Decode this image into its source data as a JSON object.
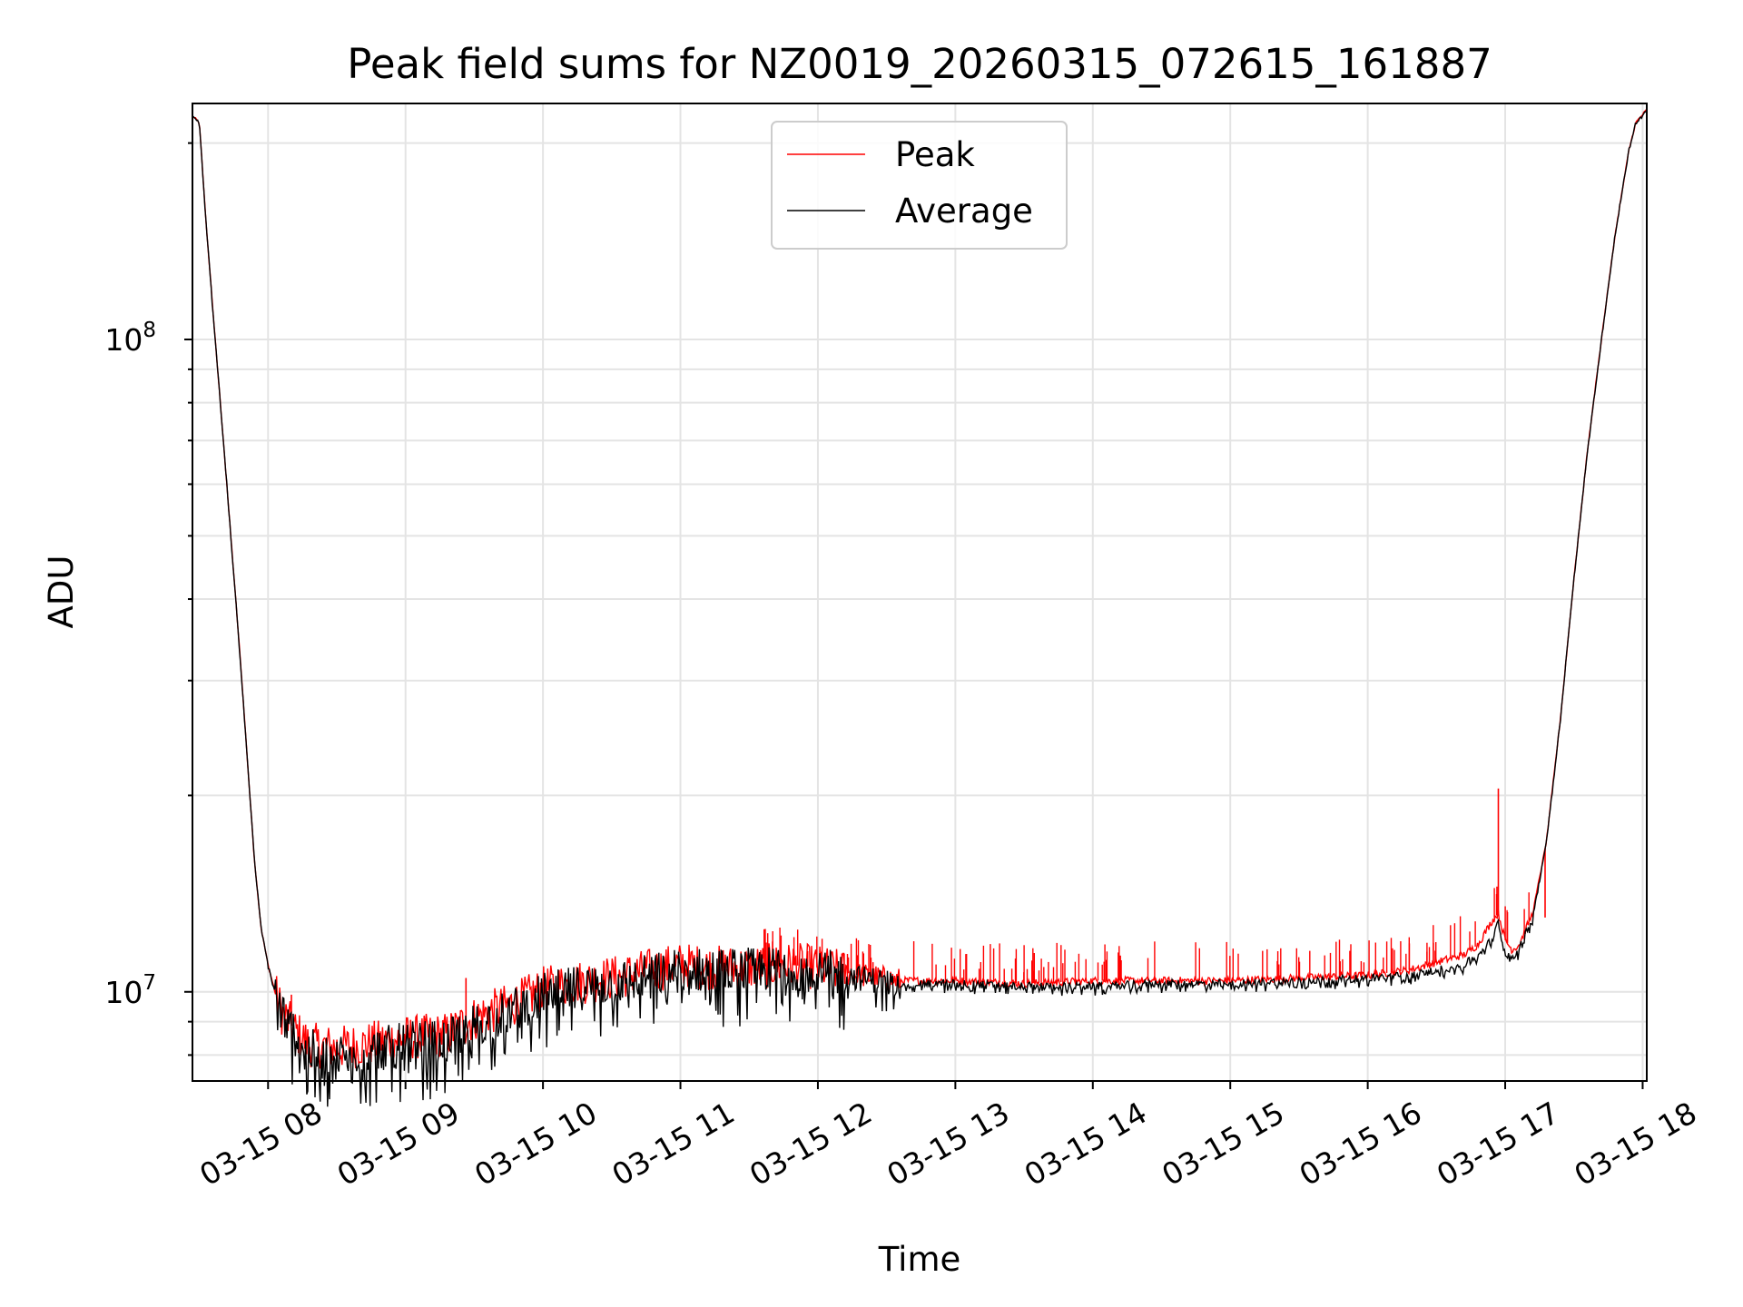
{
  "chart_data": {
    "type": "line",
    "title": "Peak field sums for NZ0019_20260315_072615_161887",
    "xlabel": "Time",
    "ylabel": "ADU",
    "yscale": "log",
    "ylim": [
      7300000,
      230000000
    ],
    "xlim_hours": [
      7.45,
      18.03
    ],
    "grid": true,
    "legend_position": "top-center",
    "x_ticks": [
      {
        "hour": 8,
        "label": "03-15 08"
      },
      {
        "hour": 9,
        "label": "03-15 09"
      },
      {
        "hour": 10,
        "label": "03-15 10"
      },
      {
        "hour": 11,
        "label": "03-15 11"
      },
      {
        "hour": 12,
        "label": "03-15 12"
      },
      {
        "hour": 13,
        "label": "03-15 13"
      },
      {
        "hour": 14,
        "label": "03-15 14"
      },
      {
        "hour": 15,
        "label": "03-15 15"
      },
      {
        "hour": 16,
        "label": "03-15 16"
      },
      {
        "hour": 17,
        "label": "03-15 17"
      },
      {
        "hour": 18,
        "label": "03-15 18"
      }
    ],
    "y_ticks": [
      {
        "value": 10000000,
        "base": "10",
        "exp": "7"
      },
      {
        "value": 100000000,
        "base": "10",
        "exp": "8"
      }
    ],
    "series": [
      {
        "name": "Peak",
        "color": "#ff0000",
        "x_hours": [
          7.45,
          7.5,
          7.55,
          7.6,
          7.7,
          7.8,
          7.9,
          7.95,
          8.0,
          8.05,
          8.1,
          8.2,
          8.3,
          8.5,
          8.7,
          9.0,
          9.3,
          9.45,
          9.55,
          9.8,
          10.0,
          10.2,
          10.5,
          10.8,
          11.0,
          11.2,
          11.5,
          11.8,
          12.0,
          12.3,
          12.6,
          13.0,
          13.5,
          14.0,
          14.5,
          15.0,
          15.5,
          16.0,
          16.3,
          16.5,
          16.7,
          16.8,
          16.9,
          16.95,
          17.0,
          17.05,
          17.1,
          17.2,
          17.3,
          17.4,
          17.5,
          17.6,
          17.7,
          17.8,
          17.9,
          17.95,
          18.03
        ],
        "values": [
          220000000,
          215000000,
          150000000,
          110000000,
          60000000,
          32000000,
          16000000,
          12500000,
          11000000,
          10000000,
          9300000,
          8700000,
          8300000,
          8200000,
          8300000,
          8500000,
          8600000,
          9000000,
          9200000,
          9600000,
          10100000,
          10300000,
          10500000,
          10800000,
          11000000,
          10900000,
          10900000,
          11000000,
          10900000,
          10600000,
          10400000,
          10400000,
          10300000,
          10400000,
          10400000,
          10400000,
          10500000,
          10600000,
          10800000,
          11100000,
          11400000,
          11800000,
          12800000,
          13200000,
          12000000,
          11600000,
          11800000,
          13200000,
          17000000,
          26000000,
          43000000,
          68000000,
          100000000,
          145000000,
          195000000,
          215000000,
          225000000
        ]
      },
      {
        "name": "Average",
        "color": "#000000",
        "x_hours": [
          7.45,
          7.5,
          7.55,
          7.6,
          7.7,
          7.8,
          7.9,
          7.95,
          8.0,
          8.05,
          8.1,
          8.2,
          8.3,
          8.5,
          8.7,
          9.0,
          9.3,
          9.45,
          9.55,
          9.8,
          10.0,
          10.2,
          10.5,
          10.8,
          11.0,
          11.2,
          11.5,
          11.8,
          12.0,
          12.3,
          12.6,
          13.0,
          13.5,
          14.0,
          14.5,
          15.0,
          15.5,
          16.0,
          16.3,
          16.5,
          16.7,
          16.8,
          16.9,
          16.95,
          17.0,
          17.05,
          17.1,
          17.2,
          17.3,
          17.4,
          17.5,
          17.6,
          17.7,
          17.8,
          17.9,
          17.95,
          18.03
        ],
        "values": [
          220000000,
          215000000,
          150000000,
          110000000,
          60000000,
          32000000,
          16000000,
          12500000,
          11000000,
          10000000,
          9300000,
          8600000,
          8100000,
          8000000,
          8100000,
          8300000,
          8400000,
          8800000,
          9000000,
          9400000,
          9900000,
          10100000,
          10300000,
          10600000,
          10800000,
          10800000,
          10800000,
          10900000,
          10800000,
          10500000,
          10300000,
          10300000,
          10200000,
          10200000,
          10300000,
          10300000,
          10400000,
          10500000,
          10600000,
          10800000,
          11000000,
          11400000,
          12000000,
          12800000,
          11500000,
          11300000,
          11600000,
          13000000,
          17000000,
          26000000,
          43000000,
          68000000,
          100000000,
          145000000,
          195000000,
          215000000,
          225000000
        ]
      }
    ]
  }
}
